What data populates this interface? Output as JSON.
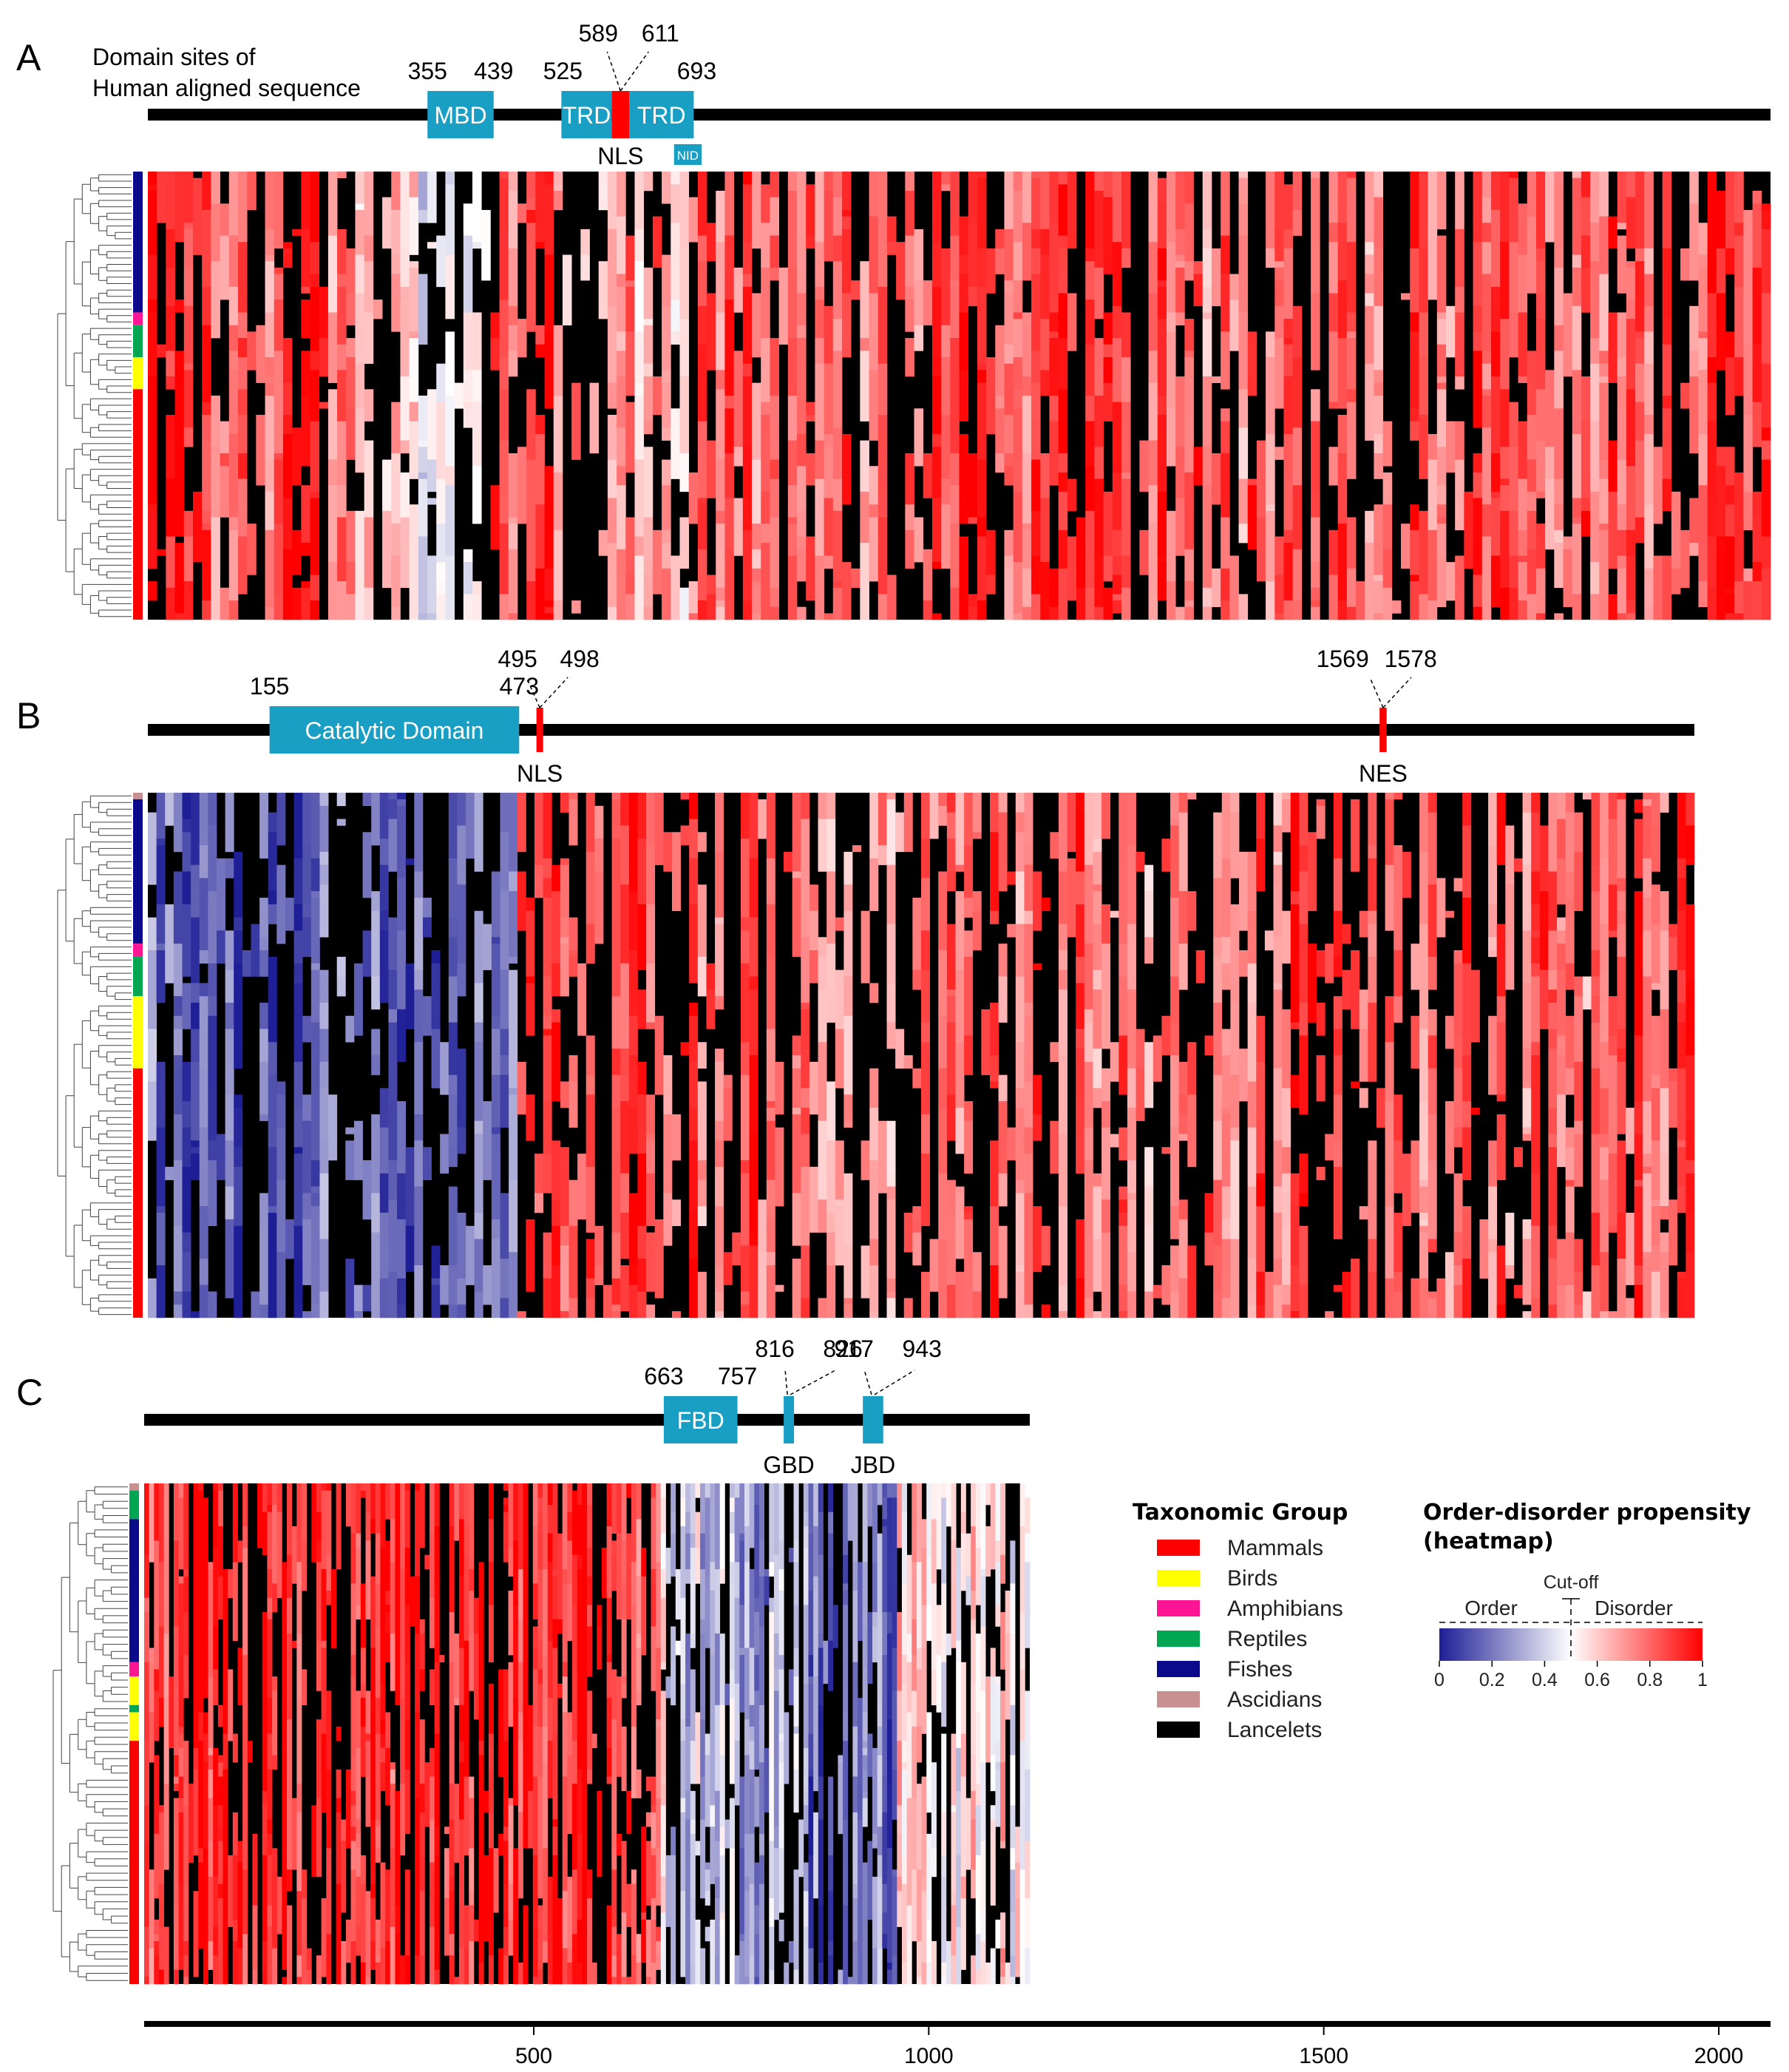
{
  "panels": [
    {
      "letter": "A",
      "heading_lines": [
        "Domain sites of",
        "Human aligned sequence"
      ],
      "sequence_length": 2060,
      "domains": [
        {
          "label": "MBD",
          "start": 355,
          "end": 439,
          "color": "#1a9fc4",
          "start_label": "355",
          "end_label": "439"
        },
        {
          "label": "TRD",
          "start": 525,
          "end": 589,
          "color": "#1a9fc4",
          "start_label": "525"
        },
        {
          "label": "TRD",
          "start": 611,
          "end": 693,
          "color": "#1a9fc4",
          "end_label": "693"
        },
        {
          "label": "NID",
          "start": 668,
          "end": 703,
          "color": "#1a9fc4",
          "below": true
        }
      ],
      "sites": [
        {
          "label": "NLS",
          "start": 589,
          "end": 611,
          "color": "#ff0000",
          "start_label": "589",
          "end_label": "611"
        }
      ],
      "heatmap": {
        "rows": 70,
        "columns": 2060,
        "taxonomy_rows": [
          {
            "group": "Fishes",
            "rows": 22
          },
          {
            "group": "Amphibians",
            "rows": 2
          },
          {
            "group": "Reptiles",
            "rows": 5
          },
          {
            "group": "Birds",
            "rows": 5
          },
          {
            "group": "Mammals",
            "rows": 36
          }
        ],
        "propensity_profile": [
          {
            "from": 1,
            "to": 65,
            "value": 1.0
          },
          {
            "from": 65,
            "to": 170,
            "value": 0.8
          },
          {
            "from": 170,
            "to": 230,
            "value": 0.92
          },
          {
            "from": 230,
            "to": 300,
            "value": 0.7
          },
          {
            "from": 300,
            "to": 340,
            "value": 0.6
          },
          {
            "from": 340,
            "to": 370,
            "value": 0.38
          },
          {
            "from": 370,
            "to": 430,
            "value": 0.45
          },
          {
            "from": 430,
            "to": 480,
            "value": 0.85
          },
          {
            "from": 480,
            "to": 520,
            "value": 0.95
          },
          {
            "from": 520,
            "to": 700,
            "value": 0.7
          },
          {
            "from": 700,
            "to": 1000,
            "value": 0.82
          },
          {
            "from": 1000,
            "to": 1300,
            "value": 0.86
          },
          {
            "from": 1300,
            "to": 1850,
            "value": 0.8
          },
          {
            "from": 1850,
            "to": 2060,
            "value": 0.86
          }
        ]
      }
    },
    {
      "letter": "B",
      "heading_lines": [],
      "sequence_length": 1970,
      "domains": [
        {
          "label": "Catalytic Domain",
          "start": 155,
          "end": 473,
          "color": "#1a9fc4",
          "start_label": "155",
          "end_label": "473"
        }
      ],
      "sites": [
        {
          "label": "NLS",
          "start": 495,
          "end": 498,
          "color": "#ff0000",
          "start_label": "495",
          "end_label": "498"
        },
        {
          "label": "NES",
          "start": 1569,
          "end": 1578,
          "color": "#ff0000",
          "start_label": "1569",
          "end_label": "1578"
        }
      ],
      "heatmap": {
        "rows": 80,
        "columns": 1970,
        "taxonomy_rows": [
          {
            "group": "Ascidians",
            "rows": 1
          },
          {
            "group": "Fishes",
            "rows": 22
          },
          {
            "group": "Amphibians",
            "rows": 2
          },
          {
            "group": "Reptiles",
            "rows": 6
          },
          {
            "group": "Birds",
            "rows": 11
          },
          {
            "group": "Mammals",
            "rows": 38
          }
        ],
        "propensity_profile": [
          {
            "from": 1,
            "to": 60,
            "value": 0.2
          },
          {
            "from": 60,
            "to": 180,
            "value": 0.12
          },
          {
            "from": 180,
            "to": 300,
            "value": 0.18
          },
          {
            "from": 300,
            "to": 473,
            "value": 0.15
          },
          {
            "from": 473,
            "to": 700,
            "value": 0.85
          },
          {
            "from": 700,
            "to": 1000,
            "value": 0.8
          },
          {
            "from": 1000,
            "to": 1400,
            "value": 0.78
          },
          {
            "from": 1400,
            "to": 1700,
            "value": 0.82
          },
          {
            "from": 1700,
            "to": 1970,
            "value": 0.8
          }
        ]
      }
    },
    {
      "letter": "C",
      "heading_lines": [],
      "sequence_length": 1130,
      "domains": [
        {
          "label": "FBD",
          "start": 663,
          "end": 757,
          "color": "#1a9fc4",
          "start_label": "663",
          "end_label": "757"
        },
        {
          "label": "GBD",
          "start": 816,
          "end": 826,
          "color": "#1a9fc4",
          "start_label": "816",
          "end_label": "826",
          "below": true
        },
        {
          "label": "JBD",
          "start": 917,
          "end": 943,
          "color": "#1a9fc4",
          "start_label": "917",
          "end_label": "943",
          "below": true
        }
      ],
      "sites": [],
      "heatmap": {
        "rows": 70,
        "columns": 1130,
        "taxonomy_rows": [
          {
            "group": "Ascidians",
            "rows": 1
          },
          {
            "group": "Reptiles",
            "rows": 4
          },
          {
            "group": "Fishes",
            "rows": 20
          },
          {
            "group": "Amphibians",
            "rows": 2
          },
          {
            "group": "Birds",
            "rows": 4
          },
          {
            "group": "Reptiles",
            "rows": 1
          },
          {
            "group": "Birds",
            "rows": 4
          },
          {
            "group": "Mammals",
            "rows": 34
          }
        ],
        "propensity_profile": [
          {
            "from": 1,
            "to": 110,
            "value": 0.9
          },
          {
            "from": 110,
            "to": 300,
            "value": 0.95
          },
          {
            "from": 300,
            "to": 500,
            "value": 0.92
          },
          {
            "from": 500,
            "to": 660,
            "value": 0.9
          },
          {
            "from": 660,
            "to": 760,
            "value": 0.4
          },
          {
            "from": 760,
            "to": 850,
            "value": 0.3
          },
          {
            "from": 850,
            "to": 960,
            "value": 0.22
          },
          {
            "from": 960,
            "to": 1130,
            "value": 0.55
          }
        ]
      }
    }
  ],
  "axis": {
    "min": 0,
    "max": 2070,
    "ticks": [
      500,
      1000,
      1500,
      2000
    ],
    "tick_labels": [
      "500",
      "1000",
      "1500",
      "2000"
    ]
  },
  "legend": {
    "taxonomic_title": "Taxonomic Group",
    "groups": [
      {
        "name": "Mammals",
        "color": "#ff0000"
      },
      {
        "name": "Birds",
        "color": "#ffff00"
      },
      {
        "name": "Amphibians",
        "color": "#ff1493"
      },
      {
        "name": "Reptiles",
        "color": "#00a651"
      },
      {
        "name": "Fishes",
        "color": "#0a0a8a"
      },
      {
        "name": "Ascidians",
        "color": "#c89090"
      },
      {
        "name": "Lancelets",
        "color": "#000000"
      }
    ],
    "heatmap_title_lines": [
      "Order-disorder propensity",
      "(heatmap)"
    ],
    "cutoff_label": "Cut-off",
    "cutoff_value": 0.5,
    "order_label": "Order",
    "disorder_label": "Disorder",
    "scale_ticks": [
      0,
      0.2,
      0.4,
      0.6,
      0.8,
      1
    ],
    "scale_tick_labels": [
      "0",
      "0.2",
      "0.4",
      "0.6",
      "0.8",
      "1"
    ],
    "colors": {
      "low": "#1e1e96",
      "mid": "#ffffff",
      "high": "#ff0000",
      "gap": "#000000"
    }
  }
}
